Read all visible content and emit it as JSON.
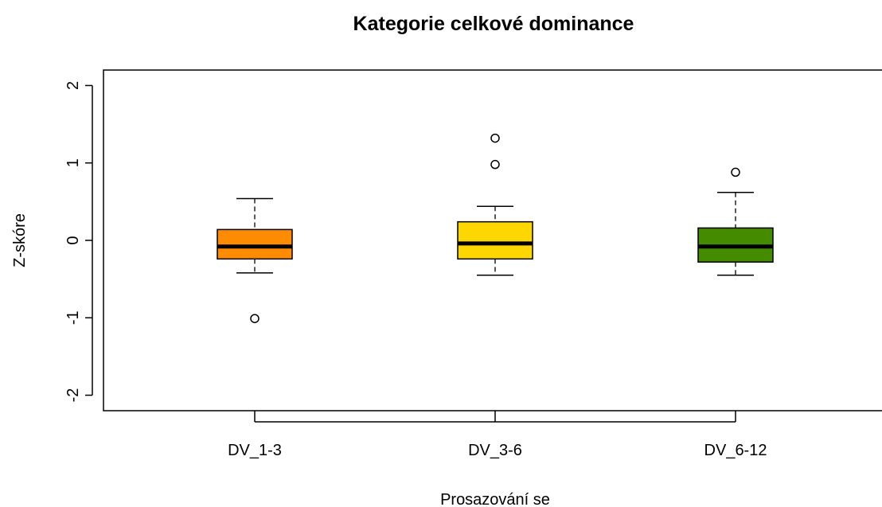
{
  "chart_data": {
    "type": "box",
    "title": "Kategorie celkové dominance",
    "xlabel": "Prosazování se",
    "ylabel": "Z-skóre",
    "ylim": [
      -2.2,
      2.2
    ],
    "yticks": [
      -2,
      -1,
      0,
      1,
      2
    ],
    "ytick_labels": [
      "-2",
      "-1",
      "0",
      "1",
      "2"
    ],
    "categories": [
      "DV_1-3",
      "DV_3-6",
      "DV_6-12"
    ],
    "boxes": [
      {
        "category": "DV_1-3",
        "color": "#FF8C00",
        "whisker_low": -0.42,
        "q1": -0.24,
        "median": -0.08,
        "q3": 0.14,
        "whisker_high": 0.54,
        "outliers": [
          -1.01
        ]
      },
      {
        "category": "DV_3-6",
        "color": "#FFD700",
        "whisker_low": -0.45,
        "q1": -0.24,
        "median": -0.04,
        "q3": 0.24,
        "whisker_high": 0.44,
        "outliers": [
          0.98,
          1.32
        ]
      },
      {
        "category": "DV_6-12",
        "color": "#458B00",
        "whisker_low": -0.45,
        "q1": -0.28,
        "median": -0.08,
        "q3": 0.16,
        "whisker_high": 0.62,
        "outliers": [
          0.88
        ]
      }
    ],
    "grid": false,
    "legend": "none"
  }
}
